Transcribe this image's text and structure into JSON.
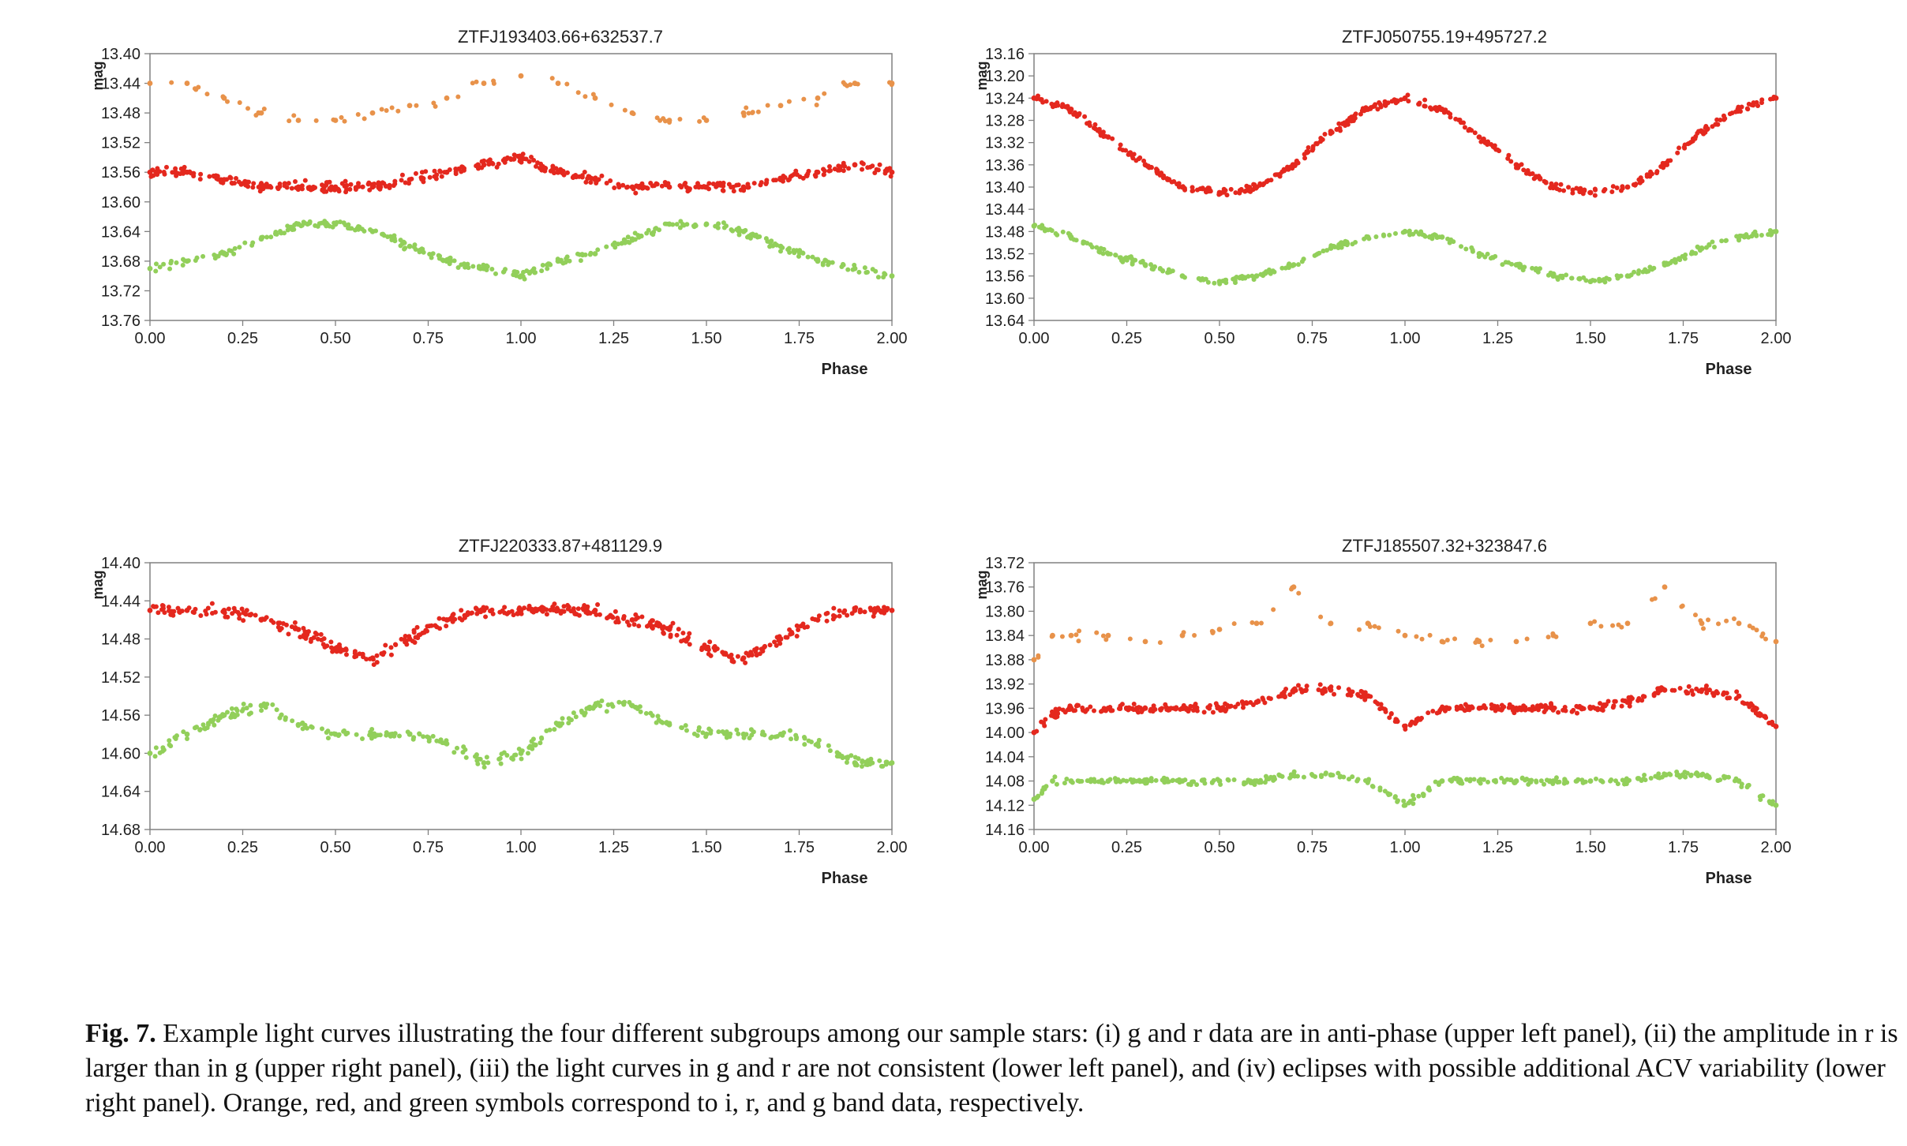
{
  "colors": {
    "i": "#E8924A",
    "r": "#E4281E",
    "g": "#92CF5A",
    "axis": "#808080",
    "text": "#222222"
  },
  "panels": [
    {
      "title": "ZTFJ193403.66+632537.7",
      "xlabel": "Phase",
      "ylabel": "mag",
      "xticks": [
        "0.00",
        "0.25",
        "0.50",
        "0.75",
        "1.00",
        "1.25",
        "1.50",
        "1.75",
        "2.00"
      ],
      "yticks": [
        "13.40",
        "13.44",
        "13.48",
        "13.52",
        "13.56",
        "13.60",
        "13.64",
        "13.68",
        "13.72",
        "13.76"
      ]
    },
    {
      "title": "ZTFJ050755.19+495727.2",
      "xlabel": "Phase",
      "ylabel": "mag",
      "xticks": [
        "0.00",
        "0.25",
        "0.50",
        "0.75",
        "1.00",
        "1.25",
        "1.50",
        "1.75",
        "2.00"
      ],
      "yticks": [
        "13.16",
        "13.20",
        "13.24",
        "13.28",
        "13.32",
        "13.36",
        "13.40",
        "13.44",
        "13.48",
        "13.52",
        "13.56",
        "13.60",
        "13.64"
      ]
    },
    {
      "title": "ZTFJ220333.87+481129.9",
      "xlabel": "Phase",
      "ylabel": "mag",
      "xticks": [
        "0.00",
        "0.25",
        "0.50",
        "0.75",
        "1.00",
        "1.25",
        "1.50",
        "1.75",
        "2.00"
      ],
      "yticks": [
        "14.40",
        "14.44",
        "14.48",
        "14.52",
        "14.56",
        "14.60",
        "14.64",
        "14.68"
      ]
    },
    {
      "title": "ZTFJ185507.32+323847.6",
      "xlabel": "Phase",
      "ylabel": "mag",
      "xticks": [
        "0.00",
        "0.25",
        "0.50",
        "0.75",
        "1.00",
        "1.25",
        "1.50",
        "1.75",
        "2.00"
      ],
      "yticks": [
        "13.72",
        "13.76",
        "13.80",
        "13.84",
        "13.88",
        "13.92",
        "13.96",
        "14.00",
        "14.04",
        "14.08",
        "14.12",
        "14.16"
      ]
    }
  ],
  "chart_data": [
    {
      "type": "scatter",
      "title": "ZTFJ193403.66+632537.7",
      "xlabel": "Phase",
      "ylabel": "mag",
      "xlim": [
        0,
        2
      ],
      "ylim": [
        13.4,
        13.76
      ],
      "y_inverted": true,
      "grid": false,
      "series": [
        {
          "band": "i",
          "color": "#E8924A",
          "x": [
            0.0,
            0.1,
            0.2,
            0.3,
            0.4,
            0.5,
            0.6,
            0.7,
            0.8,
            0.9,
            1.0,
            1.1,
            1.2,
            1.3,
            1.4,
            1.5,
            1.6,
            1.7,
            1.8,
            1.9,
            2.0
          ],
          "y": [
            13.44,
            13.44,
            13.46,
            13.48,
            13.49,
            13.49,
            13.48,
            13.47,
            13.46,
            13.44,
            13.43,
            13.44,
            13.46,
            13.48,
            13.49,
            13.49,
            13.48,
            13.47,
            13.46,
            13.44,
            13.44
          ]
        },
        {
          "band": "r",
          "color": "#E4281E",
          "x": [
            0.0,
            0.1,
            0.2,
            0.3,
            0.4,
            0.5,
            0.6,
            0.7,
            0.8,
            0.9,
            1.0,
            1.1,
            1.2,
            1.3,
            1.4,
            1.5,
            1.6,
            1.7,
            1.8,
            1.9,
            2.0
          ],
          "y": [
            13.56,
            13.56,
            13.57,
            13.58,
            13.58,
            13.58,
            13.58,
            13.57,
            13.56,
            13.55,
            13.54,
            13.56,
            13.57,
            13.58,
            13.58,
            13.58,
            13.58,
            13.57,
            13.56,
            13.55,
            13.56
          ]
        },
        {
          "band": "g",
          "color": "#92CF5A",
          "x": [
            0.0,
            0.1,
            0.2,
            0.3,
            0.4,
            0.5,
            0.6,
            0.7,
            0.8,
            0.9,
            1.0,
            1.1,
            1.2,
            1.3,
            1.4,
            1.5,
            1.6,
            1.7,
            1.8,
            1.9,
            2.0
          ],
          "y": [
            13.69,
            13.68,
            13.67,
            13.65,
            13.63,
            13.63,
            13.64,
            13.66,
            13.68,
            13.69,
            13.7,
            13.68,
            13.67,
            13.65,
            13.63,
            13.63,
            13.64,
            13.66,
            13.68,
            13.69,
            13.7
          ]
        }
      ]
    },
    {
      "type": "scatter",
      "title": "ZTFJ050755.19+495727.2",
      "xlabel": "Phase",
      "ylabel": "mag",
      "xlim": [
        0,
        2
      ],
      "ylim": [
        13.16,
        13.64
      ],
      "y_inverted": true,
      "grid": false,
      "series": [
        {
          "band": "r",
          "color": "#E4281E",
          "x": [
            0.0,
            0.1,
            0.2,
            0.3,
            0.4,
            0.5,
            0.6,
            0.7,
            0.8,
            0.9,
            1.0,
            1.1,
            1.2,
            1.3,
            1.4,
            1.5,
            1.6,
            1.7,
            1.8,
            1.9,
            2.0
          ],
          "y": [
            13.24,
            13.26,
            13.31,
            13.36,
            13.4,
            13.41,
            13.4,
            13.36,
            13.3,
            13.26,
            13.24,
            13.26,
            13.31,
            13.36,
            13.4,
            13.41,
            13.4,
            13.36,
            13.3,
            13.26,
            13.24
          ]
        },
        {
          "band": "g",
          "color": "#92CF5A",
          "x": [
            0.0,
            0.1,
            0.2,
            0.3,
            0.4,
            0.5,
            0.6,
            0.7,
            0.8,
            0.9,
            1.0,
            1.1,
            1.2,
            1.3,
            1.4,
            1.5,
            1.6,
            1.7,
            1.8,
            1.9,
            2.0
          ],
          "y": [
            13.47,
            13.49,
            13.52,
            13.54,
            13.56,
            13.57,
            13.56,
            13.54,
            13.51,
            13.49,
            13.48,
            13.49,
            13.52,
            13.54,
            13.56,
            13.57,
            13.56,
            13.54,
            13.51,
            13.49,
            13.48
          ]
        }
      ]
    },
    {
      "type": "scatter",
      "title": "ZTFJ220333.87+481129.9",
      "xlabel": "Phase",
      "ylabel": "mag",
      "xlim": [
        0,
        2
      ],
      "ylim": [
        14.4,
        14.68
      ],
      "y_inverted": true,
      "grid": false,
      "series": [
        {
          "band": "r",
          "color": "#E4281E",
          "x": [
            0.0,
            0.1,
            0.2,
            0.3,
            0.4,
            0.5,
            0.6,
            0.7,
            0.8,
            0.9,
            1.0,
            1.1,
            1.2,
            1.3,
            1.4,
            1.5,
            1.6,
            1.7,
            1.8,
            1.9,
            2.0
          ],
          "y": [
            14.45,
            14.45,
            14.45,
            14.46,
            14.47,
            14.49,
            14.5,
            14.48,
            14.46,
            14.45,
            14.45,
            14.45,
            14.45,
            14.46,
            14.47,
            14.49,
            14.5,
            14.48,
            14.46,
            14.45,
            14.45
          ]
        },
        {
          "band": "g",
          "color": "#92CF5A",
          "x": [
            0.0,
            0.1,
            0.2,
            0.3,
            0.4,
            0.5,
            0.6,
            0.7,
            0.8,
            0.9,
            1.0,
            1.1,
            1.2,
            1.3,
            1.4,
            1.5,
            1.6,
            1.7,
            1.8,
            1.9,
            2.0
          ],
          "y": [
            14.6,
            14.58,
            14.56,
            14.55,
            14.57,
            14.58,
            14.58,
            14.58,
            14.59,
            14.61,
            14.6,
            14.57,
            14.55,
            14.55,
            14.57,
            14.58,
            14.58,
            14.58,
            14.59,
            14.61,
            14.61
          ]
        }
      ]
    },
    {
      "type": "scatter",
      "title": "ZTFJ185507.32+323847.6",
      "xlabel": "Phase",
      "ylabel": "mag",
      "xlim": [
        0,
        2
      ],
      "ylim": [
        13.72,
        14.16
      ],
      "y_inverted": true,
      "grid": false,
      "series": [
        {
          "band": "i",
          "color": "#E8924A",
          "x": [
            0.0,
            0.05,
            0.1,
            0.2,
            0.3,
            0.4,
            0.5,
            0.6,
            0.7,
            0.8,
            0.9,
            1.0,
            1.1,
            1.2,
            1.3,
            1.4,
            1.5,
            1.6,
            1.7,
            1.8,
            1.9,
            2.0
          ],
          "y": [
            13.88,
            13.84,
            13.84,
            13.84,
            13.85,
            13.84,
            13.83,
            13.82,
            13.76,
            13.82,
            13.82,
            13.84,
            13.85,
            13.85,
            13.85,
            13.84,
            13.82,
            13.82,
            13.76,
            13.82,
            13.82,
            13.85
          ]
        },
        {
          "band": "r",
          "color": "#E4281E",
          "x": [
            0.0,
            0.05,
            0.1,
            0.2,
            0.3,
            0.4,
            0.5,
            0.6,
            0.7,
            0.8,
            0.9,
            1.0,
            1.1,
            1.2,
            1.3,
            1.4,
            1.5,
            1.6,
            1.7,
            1.8,
            1.9,
            2.0
          ],
          "y": [
            14.0,
            13.97,
            13.96,
            13.96,
            13.96,
            13.96,
            13.96,
            13.95,
            13.93,
            13.93,
            13.94,
            13.99,
            13.96,
            13.96,
            13.96,
            13.96,
            13.96,
            13.95,
            13.93,
            13.93,
            13.94,
            13.99
          ]
        },
        {
          "band": "g",
          "color": "#92CF5A",
          "x": [
            0.0,
            0.05,
            0.1,
            0.2,
            0.3,
            0.4,
            0.5,
            0.6,
            0.7,
            0.8,
            0.9,
            1.0,
            1.1,
            1.2,
            1.3,
            1.4,
            1.5,
            1.6,
            1.7,
            1.8,
            1.9,
            2.0
          ],
          "y": [
            14.11,
            14.08,
            14.08,
            14.08,
            14.08,
            14.08,
            14.08,
            14.08,
            14.07,
            14.07,
            14.08,
            14.12,
            14.08,
            14.08,
            14.08,
            14.08,
            14.08,
            14.08,
            14.07,
            14.07,
            14.08,
            14.12
          ]
        }
      ]
    }
  ],
  "caption": {
    "label": "Fig. 7.",
    "text": "Example light curves illustrating the four different subgroups among our sample stars: (i) g and r data are in anti-phase (upper left panel), (ii) the amplitude in r is larger than in g (upper right panel), (iii) the light curves in g and r are not consistent (lower left panel), and (iv) eclipses with possible additional ACV variability (lower right panel). Orange, red, and green symbols correspond to i, r, and g band data, respectively."
  }
}
